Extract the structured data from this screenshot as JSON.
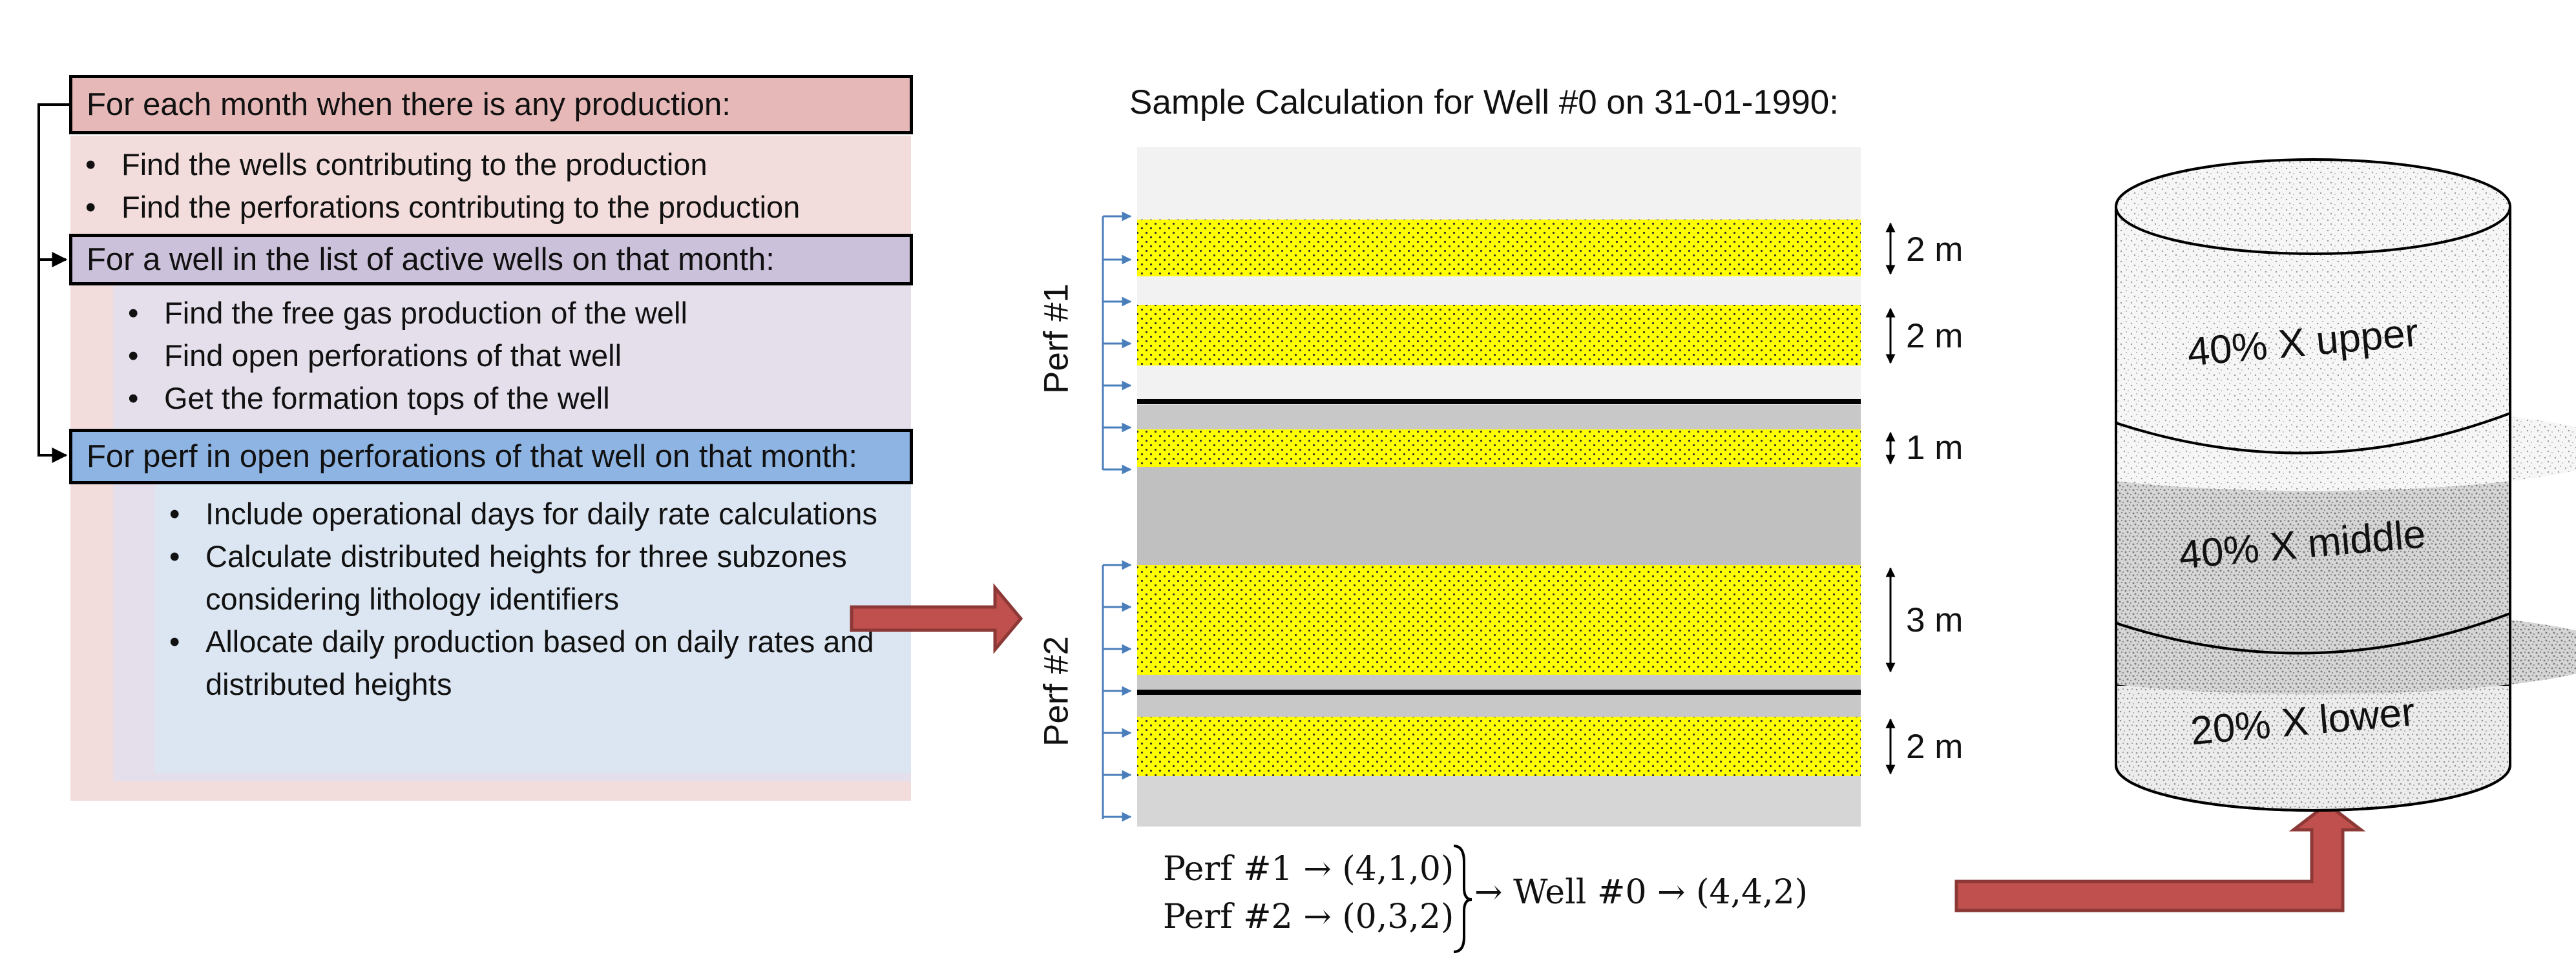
{
  "flowchart": {
    "step1": {
      "title": "For each month when there is any production:",
      "items": [
        "Find the wells contributing to the production",
        "Find the perforations contributing to the production"
      ]
    },
    "step2": {
      "title": "For a well in the list of active wells on that month:",
      "items": [
        "Find the free gas production of the well",
        "Find open perforations of that well",
        "Get the formation tops of the well"
      ]
    },
    "step3": {
      "title": "For perf in open perforations of that well on that month:",
      "items": [
        "Include operational days for daily rate calculations",
        "Calculate distributed heights for three subzones considering lithology identifiers",
        "Allocate daily production based on daily rates and distributed heights"
      ]
    }
  },
  "sample": {
    "title": "Sample Calculation for Well #0 on 31-01-1990:",
    "perf1_label": "Perf #1",
    "perf2_label": "Perf #2",
    "dims": [
      "2 m",
      "2 m",
      "1 m",
      "3 m",
      "2 m"
    ],
    "formula": {
      "perf1": "Perf #1 → (4,1,0)",
      "perf2": "Perf #2 → (0,3,2)",
      "well": "→ Well #0 → (4,4,2)"
    }
  },
  "cylinder": {
    "upper": "40% X upper",
    "middle": "40% X middle",
    "lower": "20% X lower"
  },
  "colors": {
    "step1_header": "#e6b9b8",
    "step1_bg": "#f2dcdc",
    "step2_header": "#ccc1da",
    "step2_bg": "#e5dfec",
    "step3_header": "#8eb4e3",
    "step3_bg": "#dce6f2",
    "sand": "#ffff00",
    "arrow_fill": "#c0504d",
    "arrow_stroke": "#8c3836",
    "perf_arrow": "#4a7ebb"
  }
}
